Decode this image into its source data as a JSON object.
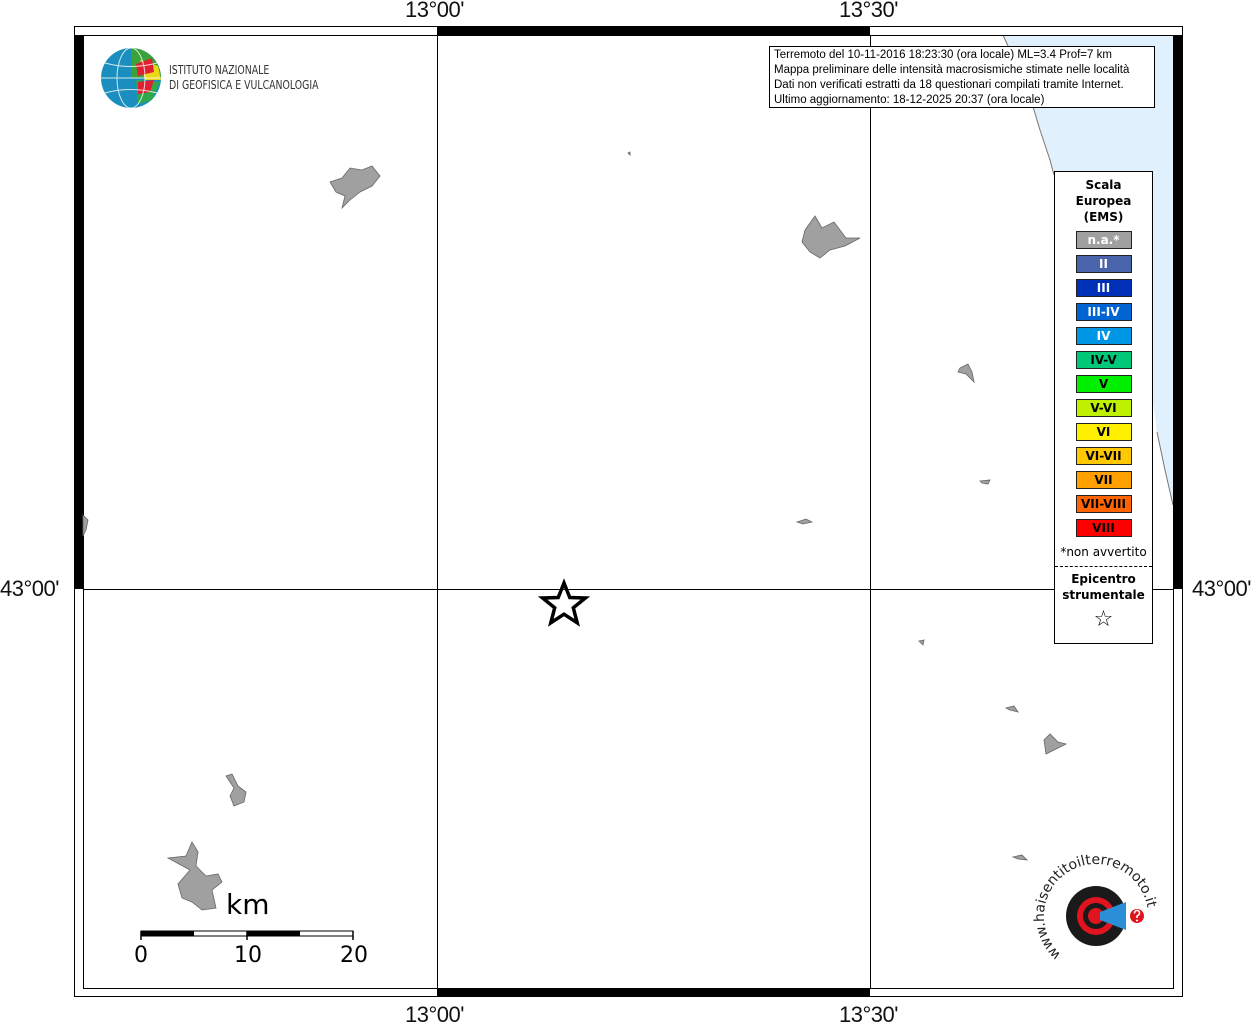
{
  "map": {
    "lon_ticks": [
      "13°00'",
      "13°30'"
    ],
    "lat_ticks": [
      "43°00'"
    ],
    "sea_color": "#e0f0fc",
    "lake_color": "#a0a0a0"
  },
  "info": {
    "line1": "Terremoto del 10-11-2016 18:23:30 (ora locale) ML=3.4 Prof=7 km",
    "line2": "Mappa preliminare delle intensità macrosismiche stimate nelle località",
    "line3": "Dati non verificati estratti da 18 questionari compilati tramite Internet.",
    "line4": "Ultimo aggiornamento: 18-12-2025 20:37 (ora locale)"
  },
  "logo_ingv": {
    "line1": "ISTITUTO NAZIONALE",
    "line2": "DI GEOFISICA E VULCANOLOGIA"
  },
  "logo_hsit": {
    "text": "www.haisentitoilterremoto.it"
  },
  "legend": {
    "title_lines": [
      "Scala",
      "Europea",
      "(EMS)"
    ],
    "items": [
      {
        "label": "n.a.*",
        "color": "#a0a0a0",
        "text_color": "#ffffff"
      },
      {
        "label": "II",
        "color": "#4a64ac",
        "text_color": "#ffffff"
      },
      {
        "label": "III",
        "color": "#0030b8",
        "text_color": "#ffffff"
      },
      {
        "label": "III-IV",
        "color": "#0064d2",
        "text_color": "#ffffff"
      },
      {
        "label": "IV",
        "color": "#0096e6",
        "text_color": "#ffffff"
      },
      {
        "label": "IV-V",
        "color": "#00c878",
        "text_color": "#000000"
      },
      {
        "label": "V",
        "color": "#00f000",
        "text_color": "#000000"
      },
      {
        "label": "V-VI",
        "color": "#bef000",
        "text_color": "#000000"
      },
      {
        "label": "VI",
        "color": "#fff000",
        "text_color": "#000000"
      },
      {
        "label": "VI-VII",
        "color": "#ffc800",
        "text_color": "#000000"
      },
      {
        "label": "VII",
        "color": "#ffa000",
        "text_color": "#000000"
      },
      {
        "label": "VII-VIII",
        "color": "#ff6400",
        "text_color": "#000000"
      },
      {
        "label": "VIII",
        "color": "#ff0000",
        "text_color": "#000000"
      }
    ],
    "note": "*non avvertito",
    "epicenter_lines": [
      "Epicentro",
      "strumentale"
    ],
    "epicenter_symbol": "☆"
  },
  "scalebar": {
    "unit": "km",
    "labels": [
      "0",
      "10",
      "20"
    ]
  }
}
